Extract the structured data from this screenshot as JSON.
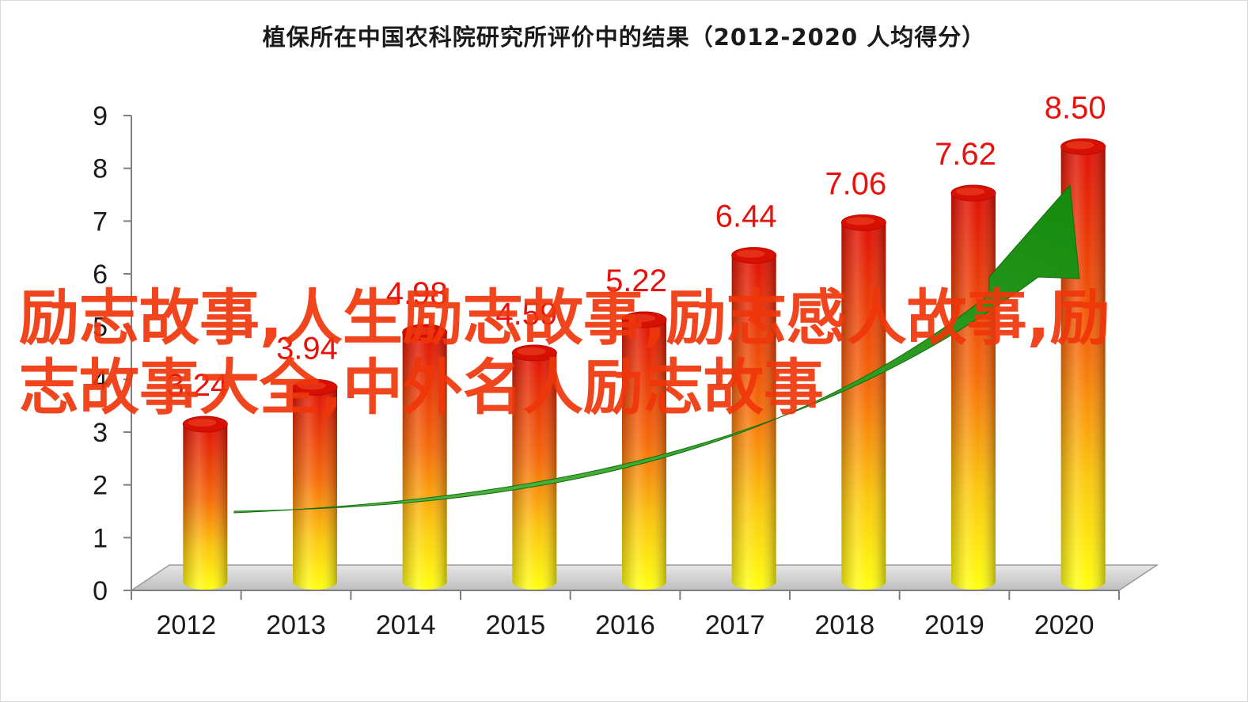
{
  "chart_data": {
    "type": "bar",
    "title": "植保所在中国农科院研究所评价中的结果（2012-2020 人均得分）",
    "categories": [
      "2012",
      "2013",
      "2014",
      "2015",
      "2016",
      "2017",
      "2018",
      "2019",
      "2020"
    ],
    "values": [
      3.24,
      3.94,
      4.98,
      4.59,
      5.22,
      6.44,
      7.06,
      7.62,
      8.5
    ],
    "data_labels": [
      "3.24",
      "3.94",
      "4.98",
      "4.59",
      "5.22",
      "6.44",
      "7.06",
      "7.62",
      "8.50"
    ],
    "y_ticks": [
      "0",
      "1",
      "2",
      "3",
      "4",
      "5",
      "6",
      "7",
      "8",
      "9"
    ],
    "ylim": [
      0,
      9
    ],
    "xlabel": "",
    "ylabel": "",
    "grid": false,
    "style": "3d-cylinder",
    "colors": {
      "bar_top": "#e01005",
      "bar_bottom": "#ffff10",
      "label": "#e8120c",
      "trend_arrow": "#1f9a12"
    }
  },
  "overlay": {
    "watermark_text": "励志故事,人生励志故事,励志感人故事,励志故事大全,中外名人励志故事",
    "watermark_color": "#f0360a"
  }
}
